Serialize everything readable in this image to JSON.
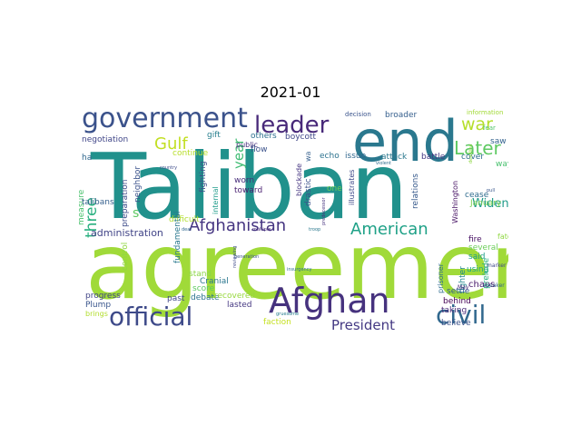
{
  "figure": {
    "title": "2021-01"
  },
  "palette": {
    "yellow_green": "#a0da39",
    "teal": "#2a788e",
    "deep_purple": "#46327e",
    "dark_teal": "#2e6f8e",
    "green": "#35b779",
    "yellow": "#c2df23",
    "purple": "#482979",
    "mint": "#1fa187"
  },
  "words": [
    {
      "text": "agreement",
      "weight": 100,
      "color": "#a0da39",
      "vertical": false
    },
    {
      "text": "Taliban",
      "weight": 96,
      "color": "#21918c",
      "vertical": false
    },
    {
      "text": "end",
      "weight": 62,
      "color": "#2a788e",
      "vertical": false
    },
    {
      "text": "Afghan",
      "weight": 38,
      "color": "#46327e",
      "vertical": false
    },
    {
      "text": "government",
      "weight": 30,
      "color": "#3b528b",
      "vertical": false
    },
    {
      "text": "official",
      "weight": 28,
      "color": "#3e4a89",
      "vertical": false
    },
    {
      "text": "civil",
      "weight": 28,
      "color": "#31688e",
      "vertical": false
    },
    {
      "text": "leader",
      "weight": 26,
      "color": "#482979",
      "vertical": false
    },
    {
      "text": "Later",
      "weight": 20,
      "color": "#5ec962",
      "vertical": false
    },
    {
      "text": "war",
      "weight": 19,
      "color": "#b5de2b",
      "vertical": false
    },
    {
      "text": "Gulf",
      "weight": 18,
      "color": "#c2df23",
      "vertical": false
    },
    {
      "text": "Afghanistan",
      "weight": 18,
      "color": "#453581",
      "vertical": false
    },
    {
      "text": "American",
      "weight": 18,
      "color": "#1fa187",
      "vertical": false
    },
    {
      "text": "three",
      "weight": 17,
      "color": "#29af7f",
      "vertical": true
    },
    {
      "text": "President",
      "weight": 15,
      "color": "#443983",
      "vertical": false
    },
    {
      "text": "year",
      "weight": 15,
      "color": "#3fbc73",
      "vertical": true
    },
    {
      "text": "Widen",
      "weight": 13,
      "color": "#1f9a8a",
      "vertical": false
    },
    {
      "text": "administration",
      "weight": 11,
      "color": "#414487",
      "vertical": false
    },
    {
      "text": "s",
      "weight": 14,
      "color": "#5ec962",
      "vertical": false
    },
    {
      "text": "negotiation",
      "weight": 9,
      "color": "#404688",
      "vertical": false
    },
    {
      "text": "gift",
      "weight": 9,
      "color": "#277f8e",
      "vertical": false
    },
    {
      "text": "public",
      "weight": 8,
      "color": "#472f7d",
      "vertical": false
    },
    {
      "text": "others",
      "weight": 9,
      "color": "#2d708e",
      "vertical": false
    },
    {
      "text": "boycott",
      "weight": 9,
      "color": "#3f4788",
      "vertical": false
    },
    {
      "text": "flow",
      "weight": 9,
      "color": "#3b528b",
      "vertical": false
    },
    {
      "text": "echo",
      "weight": 9,
      "color": "#2c728e",
      "vertical": false
    },
    {
      "text": "issue",
      "weight": 9,
      "color": "#31688e",
      "vertical": false
    },
    {
      "text": "attack",
      "weight": 9,
      "color": "#2a788e",
      "vertical": false
    },
    {
      "text": "battle",
      "weight": 9,
      "color": "#453882",
      "vertical": false
    },
    {
      "text": "cover",
      "weight": 9,
      "color": "#2e6e8e",
      "vertical": false
    },
    {
      "text": "decision",
      "weight": 7,
      "color": "#3a548c",
      "vertical": false
    },
    {
      "text": "broader",
      "weight": 9,
      "color": "#355f8d",
      "vertical": false
    },
    {
      "text": "information",
      "weight": 7,
      "color": "#a2da37",
      "vertical": false
    },
    {
      "text": "saw",
      "weight": 9,
      "color": "#33628d",
      "vertical": false
    },
    {
      "text": "way",
      "weight": 9,
      "color": "#48c16e",
      "vertical": false
    },
    {
      "text": "cease",
      "weight": 9,
      "color": "#2f6c8e",
      "vertical": false
    },
    {
      "text": "fire",
      "weight": 9,
      "color": "#471063",
      "vertical": false
    },
    {
      "text": "fate",
      "weight": 8,
      "color": "#90d743",
      "vertical": false
    },
    {
      "text": "said",
      "weight": 9,
      "color": "#1f9e89",
      "vertical": false
    },
    {
      "text": "using",
      "weight": 9,
      "color": "#21a685",
      "vertical": false
    },
    {
      "text": "several",
      "weight": 9,
      "color": "#6ccd5a",
      "vertical": false
    },
    {
      "text": "January",
      "weight": 9,
      "color": "#7ad151",
      "vertical": false
    },
    {
      "text": "relations",
      "weight": 9,
      "color": "#375a8c",
      "vertical": true
    },
    {
      "text": "Washington",
      "weight": 8,
      "color": "#471365",
      "vertical": true
    },
    {
      "text": "continue",
      "weight": 9,
      "color": "#b8de29",
      "vertical": false
    },
    {
      "text": "neighbor",
      "weight": 9,
      "color": "#3b528b",
      "vertical": true
    },
    {
      "text": "ha",
      "weight": 9,
      "color": "#31688e",
      "vertical": false
    },
    {
      "text": "measure",
      "weight": 9,
      "color": "#4ac16d",
      "vertical": true
    },
    {
      "text": "preparation",
      "weight": 9,
      "color": "#3e4c8a",
      "vertical": true
    },
    {
      "text": "internal",
      "weight": 8,
      "color": "#1e9b8a",
      "vertical": true
    },
    {
      "text": "fighting",
      "weight": 9,
      "color": "#3d4d8a",
      "vertical": true
    },
    {
      "text": "worn",
      "weight": 9,
      "color": "#472c7a",
      "vertical": false
    },
    {
      "text": "toward",
      "weight": 9,
      "color": "#481f70",
      "vertical": false
    },
    {
      "text": "blockade",
      "weight": 8,
      "color": "#453581",
      "vertical": true
    },
    {
      "text": "drastic",
      "weight": 9,
      "color": "#3b528b",
      "vertical": true
    },
    {
      "text": "wa",
      "weight": 8,
      "color": "#355f8d",
      "vertical": true
    },
    {
      "text": "one",
      "weight": 9,
      "color": "#6ece58",
      "vertical": false
    },
    {
      "text": "illustrates",
      "weight": 8,
      "color": "#3e4989",
      "vertical": true
    },
    {
      "text": "difficult",
      "weight": 9,
      "color": "#b0dd2f",
      "vertical": false
    },
    {
      "text": "control",
      "weight": 9,
      "color": "#90d743",
      "vertical": true
    },
    {
      "text": "fundamental",
      "weight": 9,
      "color": "#2a788e",
      "vertical": true
    },
    {
      "text": "score",
      "weight": 9,
      "color": "#5ec962",
      "vertical": false
    },
    {
      "text": "stand",
      "weight": 9,
      "color": "#8bd646",
      "vertical": false
    },
    {
      "text": "debate",
      "weight": 9,
      "color": "#2c728e",
      "vertical": false
    },
    {
      "text": "Cranial",
      "weight": 9,
      "color": "#2a768e",
      "vertical": false
    },
    {
      "text": "recovered",
      "weight": 9,
      "color": "#98d83e",
      "vertical": false
    },
    {
      "text": "past",
      "weight": 9,
      "color": "#3f4788",
      "vertical": false
    },
    {
      "text": "lasted",
      "weight": 9,
      "color": "#453781",
      "vertical": false
    },
    {
      "text": "faction",
      "weight": 9,
      "color": "#c5e021",
      "vertical": false
    },
    {
      "text": "progress",
      "weight": 9,
      "color": "#414487",
      "vertical": false
    },
    {
      "text": "Plump",
      "weight": 9,
      "color": "#39558c",
      "vertical": false
    },
    {
      "text": "brings",
      "weight": 8,
      "color": "#b2dd2d",
      "vertical": false
    },
    {
      "text": "chaos",
      "weight": 10,
      "color": "#48186a",
      "vertical": false
    },
    {
      "text": "prisoner",
      "weight": 8,
      "color": "#2f6c8e",
      "vertical": true
    },
    {
      "text": "fighter",
      "weight": 9,
      "color": "#23888e",
      "vertical": true
    },
    {
      "text": "prelude",
      "weight": 9,
      "color": "#29af7f",
      "vertical": true
    },
    {
      "text": "settle",
      "weight": 9,
      "color": "#375b8d",
      "vertical": false
    },
    {
      "text": "behind",
      "weight": 9,
      "color": "#440154",
      "vertical": false
    },
    {
      "text": "taking",
      "weight": 9,
      "color": "#482979",
      "vertical": false
    },
    {
      "text": "believe",
      "weight": 9,
      "color": "#3b528b",
      "vertical": false
    },
    {
      "text": "fear",
      "weight": 9,
      "color": "#52c569",
      "vertical": false
    },
    {
      "text": "speaker",
      "weight": 7,
      "color": "#33638d",
      "vertical": false
    },
    {
      "text": "marker",
      "weight": 6,
      "color": "#3f4788",
      "vertical": false
    },
    {
      "text": "May",
      "weight": 6,
      "color": "#482878",
      "vertical": false
    },
    {
      "text": "reviewing",
      "weight": 6,
      "color": "#3e4a89",
      "vertical": true
    },
    {
      "text": "insurgency",
      "weight": 5,
      "color": "#2d708e",
      "vertical": false
    },
    {
      "text": "gruesome",
      "weight": 5,
      "color": "#277e8e",
      "vertical": false
    },
    {
      "text": "country",
      "weight": 5,
      "color": "#3e4c8a",
      "vertical": false
    },
    {
      "text": "violent",
      "weight": 5,
      "color": "#2e6e8e",
      "vertical": false
    },
    {
      "text": "pull",
      "weight": 5,
      "color": "#39568c",
      "vertical": false
    },
    {
      "text": "deadline",
      "weight": 5,
      "color": "#8fd744",
      "vertical": true
    },
    {
      "text": "become",
      "weight": 5,
      "color": "#3f4889",
      "vertical": false
    },
    {
      "text": "predecessor",
      "weight": 5,
      "color": "#46327e",
      "vertical": true
    },
    {
      "text": "troop",
      "weight": 5,
      "color": "#2a788e",
      "vertical": false
    },
    {
      "text": "multiple",
      "weight": 5,
      "color": "#472c7a",
      "vertical": false
    },
    {
      "text": "generation",
      "weight": 5,
      "color": "#3b528b",
      "vertical": false
    },
    {
      "text": "deal",
      "weight": 5,
      "color": "#31688e",
      "vertical": false
    },
    {
      "text": "talibans",
      "weight": 5,
      "color": "#355f8d",
      "vertical": false
    }
  ]
}
